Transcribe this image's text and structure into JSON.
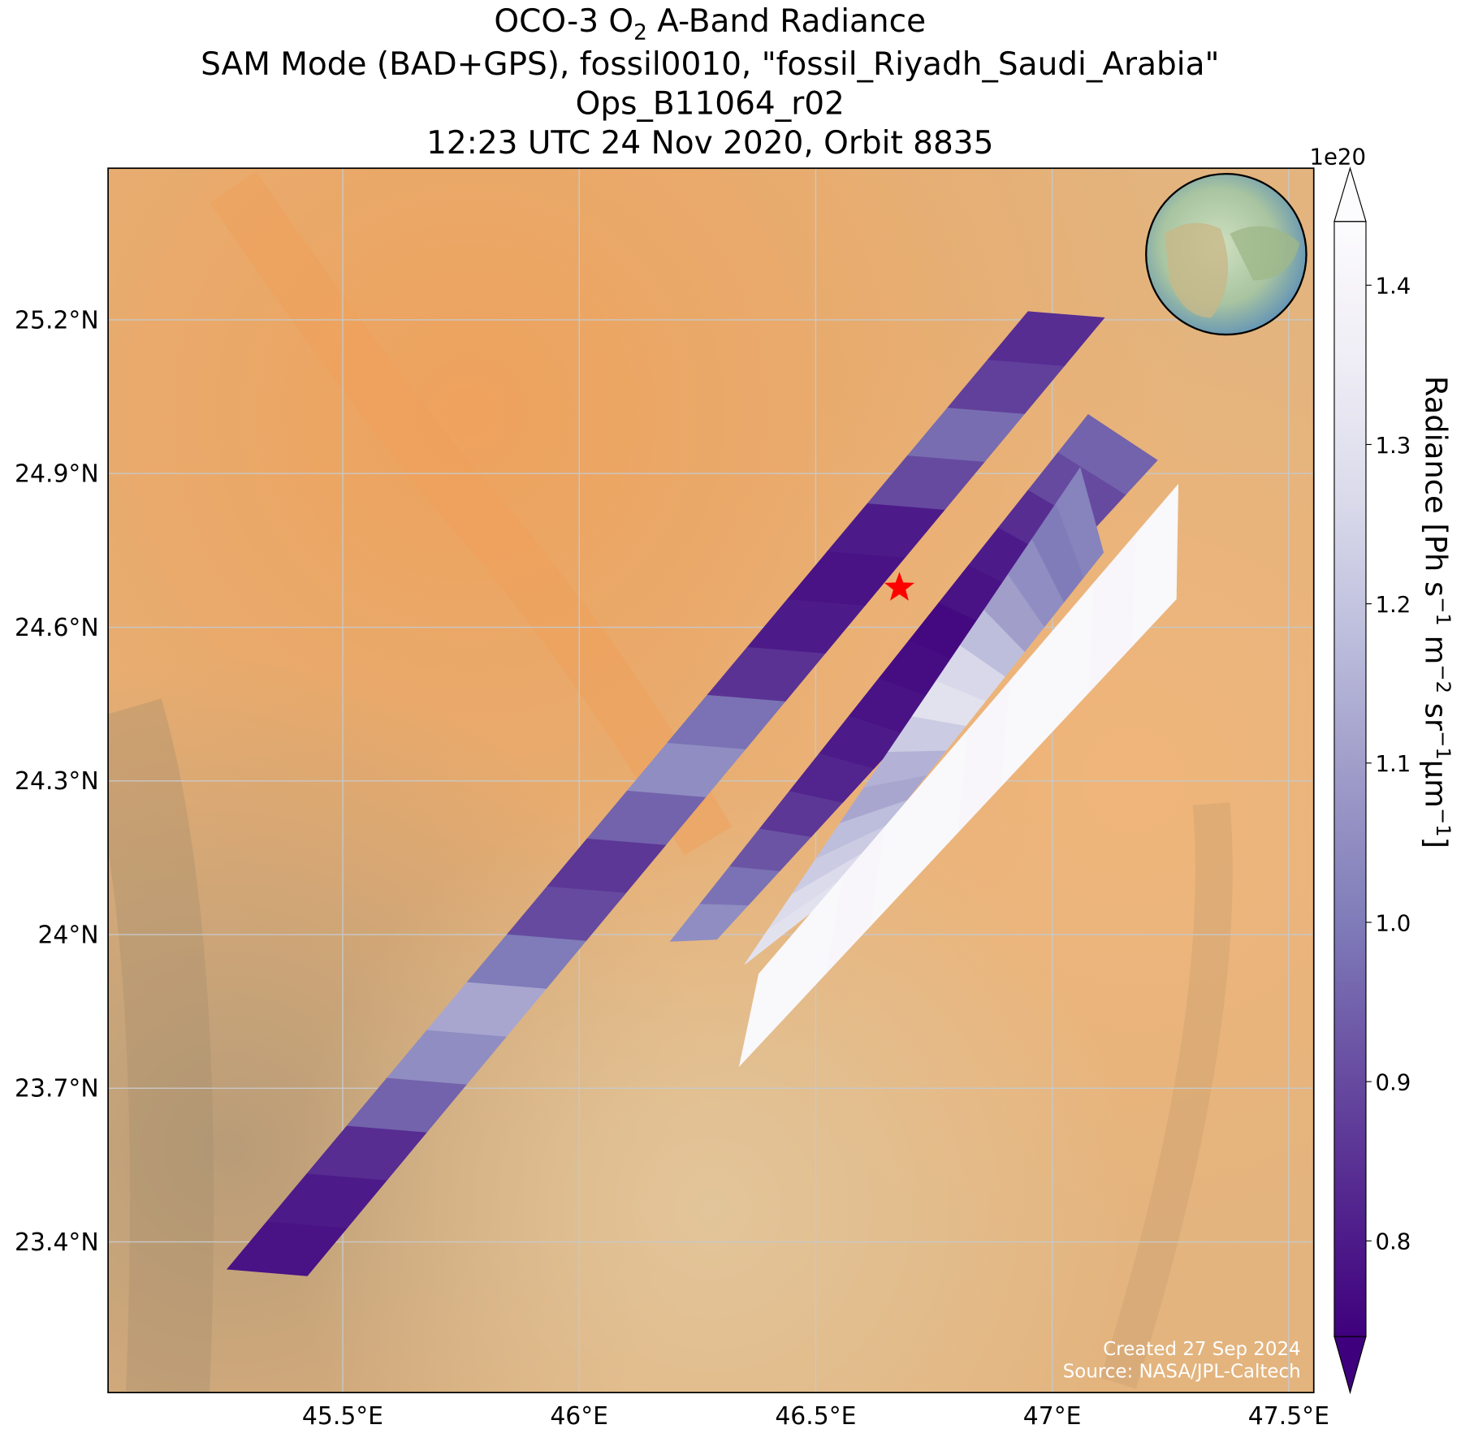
{
  "chart_data": {
    "type": "swath-map",
    "title": {
      "prefix": "OCO-3 O",
      "sub": "2",
      "suffix": " A-Band Radiance"
    },
    "subtitle": [
      "SAM Mode (BAD+GPS), fossil0010, \"fossil_Riyadh_Saudi_Arabia\"",
      "Ops_B11064_r02",
      "12:23 UTC 24 Nov 2020, Orbit 8835"
    ],
    "xlim": [
      45.004,
      47.553
    ],
    "ylim": [
      23.106,
      25.496
    ],
    "xticks": [
      {
        "value": 45.5,
        "label": "45.5°E"
      },
      {
        "value": 46,
        "label": "46°E"
      },
      {
        "value": 46.5,
        "label": "46.5°E"
      },
      {
        "value": 47,
        "label": "47°E"
      },
      {
        "value": 47.5,
        "label": "47.5°E"
      }
    ],
    "yticks": [
      {
        "value": 23.4,
        "label": "23.4°N"
      },
      {
        "value": 23.7,
        "label": "23.7°N"
      },
      {
        "value": 24.0,
        "label": "24°N"
      },
      {
        "value": 24.3,
        "label": "24.3°N"
      },
      {
        "value": 24.6,
        "label": "24.6°N"
      },
      {
        "value": 24.9,
        "label": "24.9°N"
      },
      {
        "value": 25.2,
        "label": "25.2°N"
      }
    ],
    "grid": true,
    "colorbar": {
      "label": [
        "Radiance [Ph s",
        "−1",
        " m",
        "−2",
        " sr",
        "−1",
        "µm",
        "−1",
        "]"
      ],
      "offset": "1e20",
      "clim": [
        0.74,
        1.44
      ],
      "ticks": [
        0.8,
        0.9,
        {
          "value": 1.0,
          "label": "1.0"
        },
        1.1,
        1.2,
        1.3,
        1.4
      ],
      "colors": [
        "#3f007d",
        "#54278f",
        "#6a51a3",
        "#807dba",
        "#9e9ac8",
        "#bcbddc",
        "#dadaeb",
        "#efedf5",
        "#fcfbfd"
      ]
    },
    "swaths": [
      {
        "corners": [
          [
            45.256,
            23.347
          ],
          [
            45.425,
            23.334
          ],
          [
            47.11,
            25.204
          ],
          [
            46.949,
            25.216
          ]
        ],
        "values": [
          0.78,
          0.8,
          0.84,
          0.95,
          1.05,
          1.12,
          1.0,
          0.9,
          0.86,
          0.95,
          1.05,
          0.98,
          0.85,
          0.8,
          0.78,
          0.8,
          0.9,
          0.97,
          0.88,
          0.84
        ]
      },
      {
        "corners": [
          [
            46.193,
            23.987
          ],
          [
            46.291,
            23.991
          ],
          [
            47.222,
            24.926
          ],
          [
            47.076,
            25.015
          ]
        ],
        "values": [
          1.05,
          0.98,
          0.92,
          0.86,
          0.82,
          0.8,
          0.78,
          0.77,
          0.76,
          0.78,
          0.8,
          0.84,
          0.9,
          0.95
        ]
      },
      {
        "corners": [
          [
            46.35,
            23.942
          ],
          [
            46.527,
            24.07
          ],
          [
            47.108,
            24.746
          ],
          [
            47.059,
            24.911
          ]
        ],
        "values": [
          1.3,
          1.27,
          1.22,
          1.18,
          1.12,
          1.15,
          1.22,
          1.3,
          1.26,
          1.18,
          1.1,
          1.05,
          1.0,
          1.02
        ]
      },
      {
        "corners": [
          [
            46.38,
            23.923
          ],
          [
            46.339,
            23.744
          ],
          [
            47.262,
            24.655
          ],
          [
            47.266,
            24.878
          ]
        ],
        "values": [
          1.42,
          1.42,
          1.41,
          1.42,
          1.42,
          1.41,
          1.42,
          1.42,
          1.41,
          1.42
        ]
      }
    ],
    "target": {
      "lon": 46.677,
      "lat": 24.677,
      "color": "#ff0000"
    },
    "credits": [
      "Created 27 Sep 2024",
      "Source: NASA/JPL-Caltech"
    ]
  }
}
